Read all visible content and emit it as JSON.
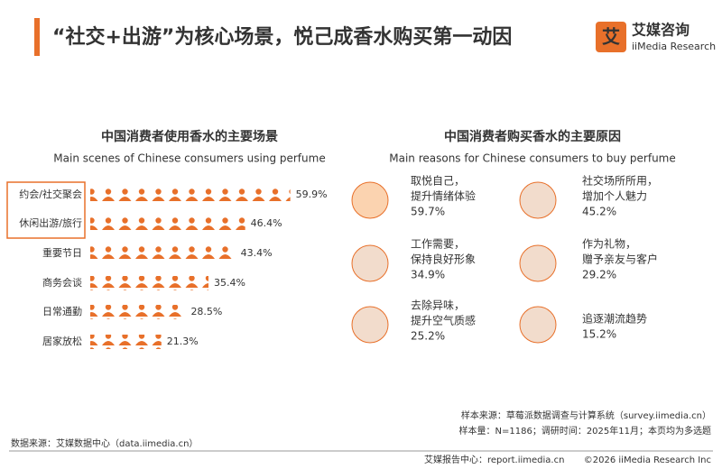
{
  "header": {
    "title": "“社交+出游”为核心场景，悦己成香水购买第一动因",
    "logo": "艾媒咨询",
    "logo_en": "iiMedia Research"
  },
  "chart_data": [
    {
      "type": "pictograph",
      "title": "中国消费者使用香水的主要场景",
      "subtitle": "Main scenes of Chinese consumers using perfume",
      "categories": [
        "约会/社交聚会",
        "休闲出游/旅行",
        "重要节日",
        "商务会谈",
        "日常通勤",
        "居家放松"
      ],
      "values": [
        59.9,
        46.4,
        43.4,
        35.4,
        28.5,
        21.3
      ],
      "value_labels": [
        "59.9%",
        "46.4%",
        "43.4%",
        "35.4%",
        "28.5%",
        "21.3%"
      ],
      "color": "#e8702a"
    },
    {
      "type": "icon-list",
      "title": "中国消费者购买香水的主要原因",
      "subtitle": "Main reasons for Chinese consumers to buy perfume",
      "categories": [
        [
          "取悦自己，",
          "提升情绪体验"
        ],
        [
          "社交场所所用，",
          "增加个人魅力"
        ],
        [
          "工作需要，",
          "保持良好形象"
        ],
        [
          "作为礼物，",
          "赠予亲友与客户"
        ],
        [
          "去除异味，",
          "提升空气质感"
        ],
        [
          "追逐潮流趋势"
        ]
      ],
      "values": [
        59.7,
        45.2,
        34.9,
        29.2,
        25.2,
        15.2
      ],
      "value_labels": [
        "59.7%",
        "45.2%",
        "34.9%",
        "29.2%",
        "25.2%",
        "15.2%"
      ],
      "color": "#d9453a"
    }
  ],
  "footer": {
    "source": "数据来源：艾媒数据中心（data.iimedia.cn）",
    "sample_source": "样本来源：草莓派数据调查与计算系统（survey.iimedia.cn）",
    "sample_size": "样本量：N=1186；调研时间：2025年11月；本页均为多选题",
    "report_center": "艾媒报告中心：report.iimedia.cn",
    "copyright": "©2026  iiMedia Research  Inc"
  }
}
